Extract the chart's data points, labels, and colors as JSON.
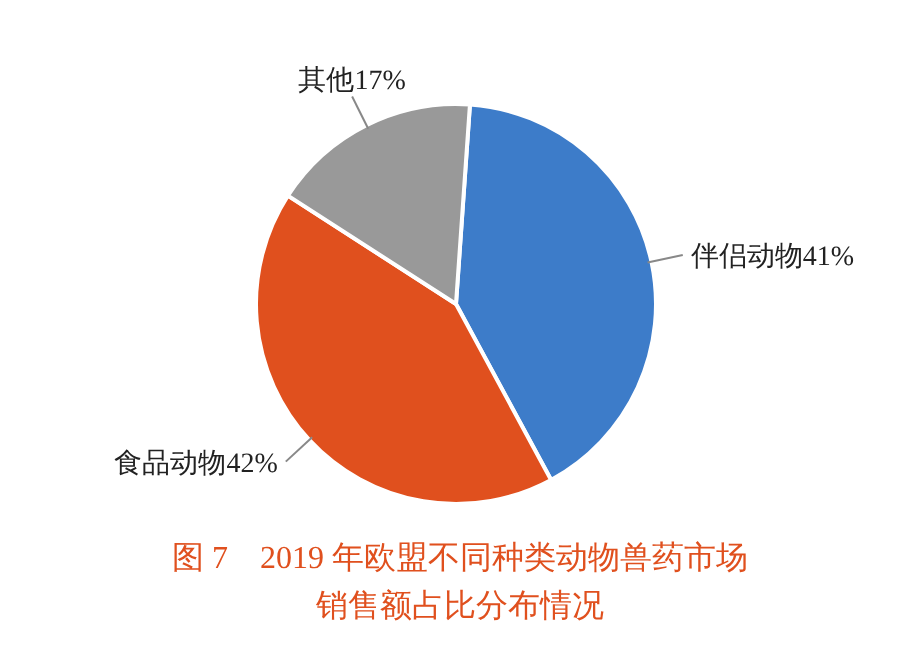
{
  "chart_data": {
    "type": "pie",
    "title": "图 7　2019 年欧盟不同种类动物兽药市场销售额占比分布情况",
    "categories": [
      "伴侣动物",
      "食品动物",
      "其他"
    ],
    "values": [
      41,
      42,
      17
    ],
    "value_labels": [
      "41%",
      "42%",
      "17%"
    ],
    "colors": [
      "#3d7cc9",
      "#e0501e",
      "#999999"
    ]
  }
}
